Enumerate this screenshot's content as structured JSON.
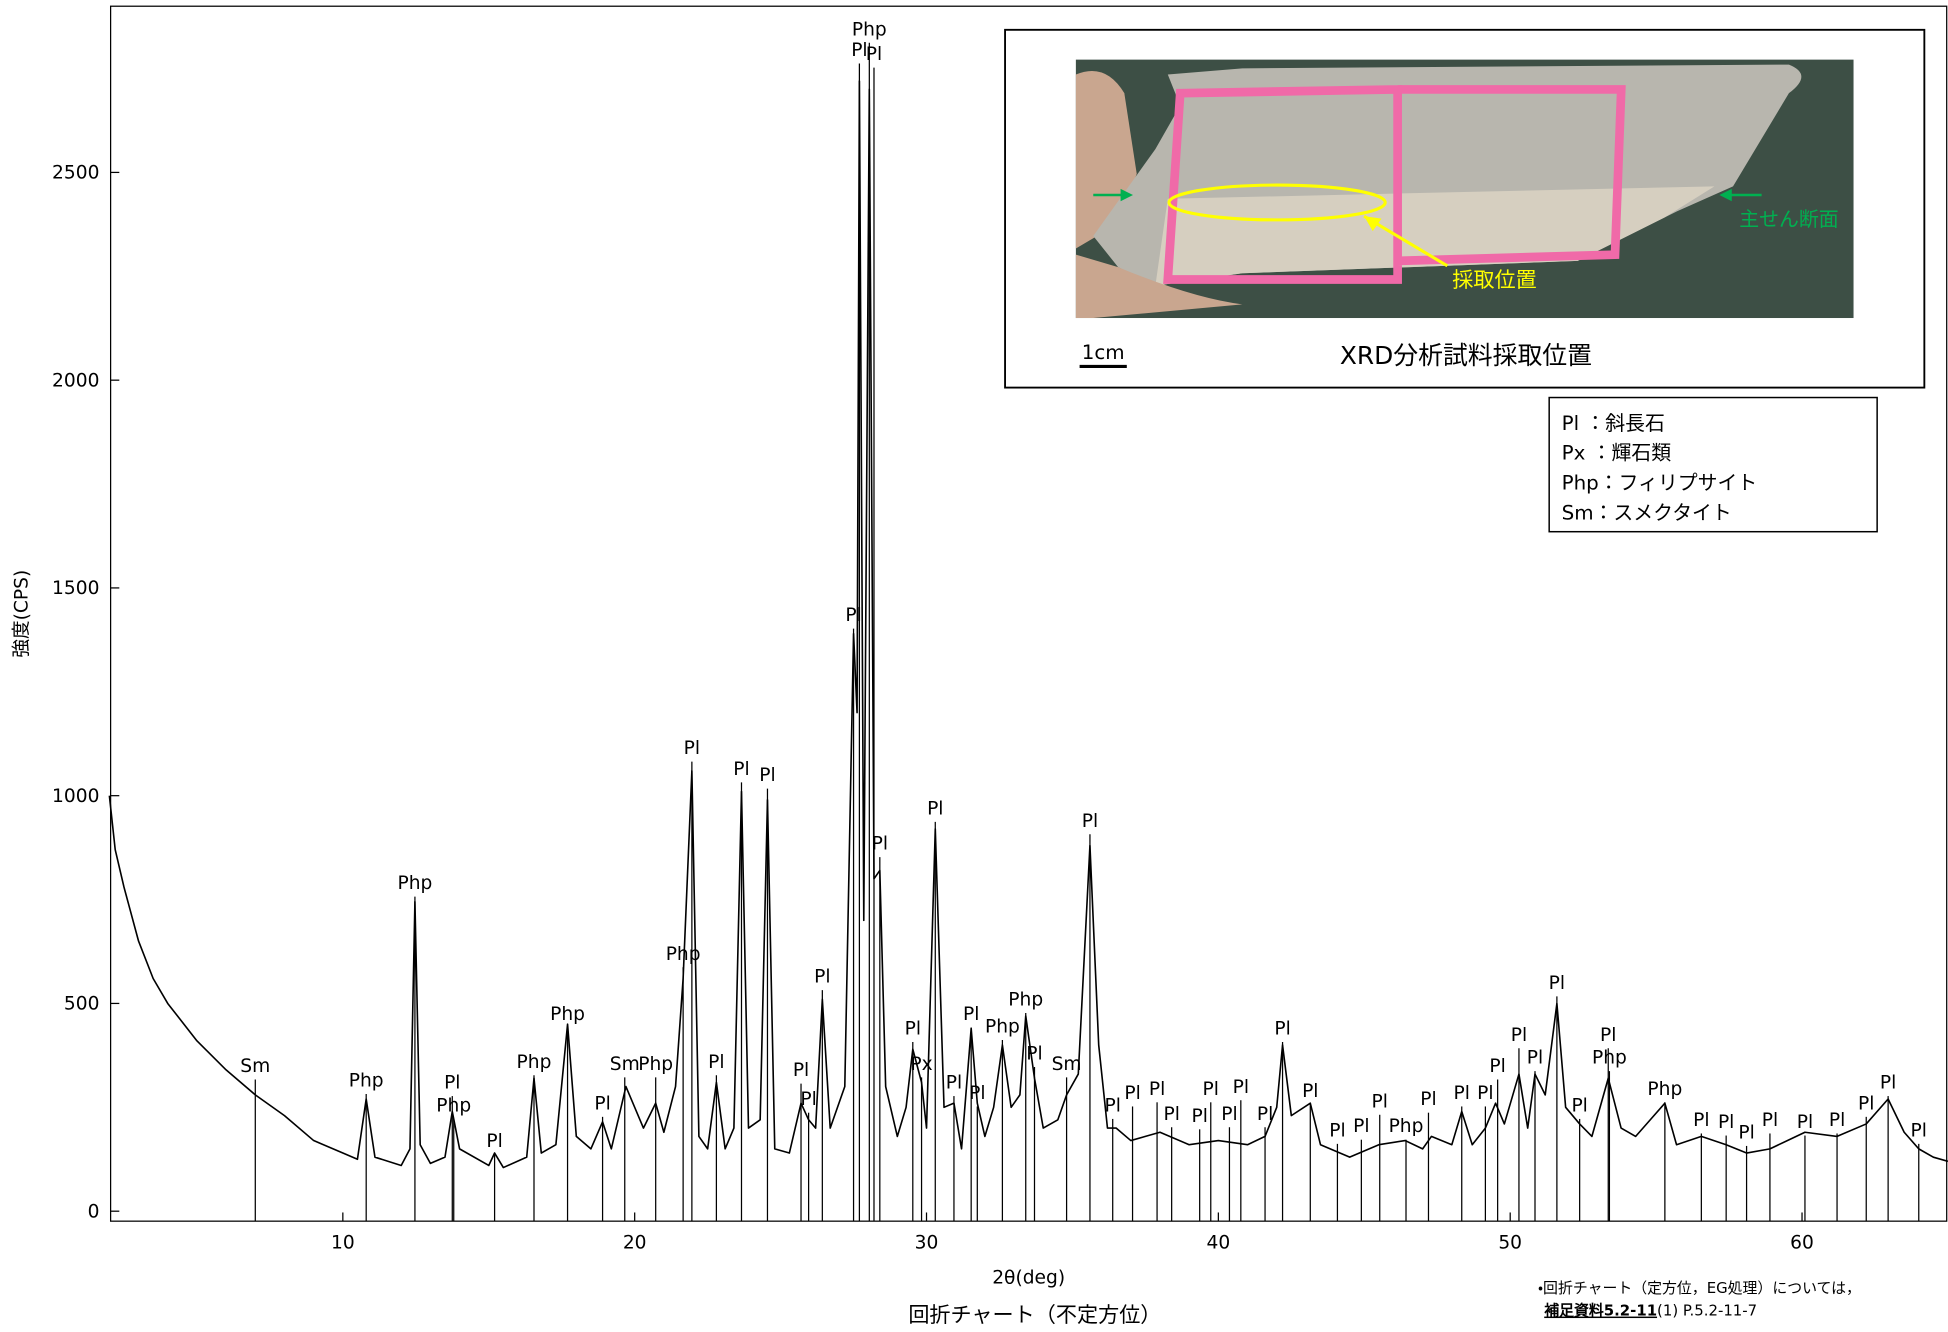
{
  "chart_data": {
    "type": "line",
    "xlabel": "2θ(deg)",
    "ylabel": "強度(CPS)",
    "caption": "回折チャート（不定方位）",
    "xlim": [
      2,
      65
    ],
    "ylim": [
      -24,
      2900
    ],
    "xticks": [
      10,
      20,
      30,
      40,
      50,
      60
    ],
    "yticks": [
      0,
      500,
      1000,
      1500,
      2000,
      2500
    ],
    "grid": false,
    "x": [
      2,
      2.2,
      2.5,
      3,
      3.5,
      4,
      5,
      6,
      7,
      8,
      9,
      10,
      10.5,
      10.8,
      11.1,
      12,
      12.3,
      12.47,
      12.65,
      13,
      13.5,
      13.75,
      14,
      15,
      15.2,
      15.5,
      16.3,
      16.55,
      16.8,
      17.3,
      17.7,
      18,
      18.5,
      18.9,
      19.2,
      19.7,
      20.3,
      20.72,
      21,
      21.4,
      21.66,
      21.96,
      22.2,
      22.5,
      22.8,
      23.1,
      23.4,
      23.66,
      23.9,
      24.3,
      24.55,
      24.8,
      25.3,
      25.7,
      25.96,
      26.2,
      26.43,
      26.7,
      27.2,
      27.5,
      27.62,
      27.7,
      27.85,
      28.04,
      28.2,
      28.4,
      28.6,
      29,
      29.3,
      29.53,
      29.83,
      30,
      30.3,
      30.6,
      30.94,
      31.2,
      31.53,
      31.74,
      32,
      32.3,
      32.6,
      32.9,
      33.2,
      33.4,
      33.7,
      34,
      34.5,
      34.8,
      35.2,
      35.6,
      35.9,
      36.2,
      36.5,
      37,
      38,
      39,
      40,
      41,
      41.6,
      42,
      42.2,
      42.5,
      43.15,
      43.5,
      44.5,
      45.5,
      46.4,
      47,
      47.3,
      48,
      48.34,
      48.7,
      49.15,
      49.5,
      49.8,
      50.3,
      50.6,
      50.85,
      51.2,
      51.6,
      51.9,
      52.38,
      52.8,
      53.36,
      53.8,
      54.3,
      55.3,
      55.7,
      56.55,
      57.4,
      58.1,
      58.9,
      60.1,
      61.2,
      62.2,
      62.95,
      63.5,
      64,
      64.5,
      65
    ],
    "series": [
      {
        "color": "#000000",
        "values": [
          1000,
          870,
          780,
          650,
          560,
          500,
          410,
          340,
          280,
          230,
          170,
          140,
          125,
          270,
          130,
          110,
          150,
          745,
          160,
          115,
          130,
          240,
          150,
          110,
          140,
          105,
          130,
          320,
          140,
          160,
          450,
          180,
          150,
          215,
          150,
          300,
          200,
          260,
          190,
          300,
          560,
          1060,
          180,
          150,
          310,
          150,
          200,
          1010,
          200,
          220,
          990,
          150,
          140,
          260,
          220,
          200,
          510,
          200,
          300,
          1390,
          1200,
          2720,
          700,
          2700,
          800,
          820,
          300,
          180,
          250,
          390,
          310,
          200,
          920,
          250,
          260,
          150,
          440,
          260,
          180,
          250,
          400,
          250,
          280,
          470,
          320,
          200,
          220,
          280,
          330,
          880,
          400,
          200,
          200,
          170,
          190,
          160,
          170,
          160,
          180,
          250,
          400,
          230,
          260,
          160,
          130,
          160,
          170,
          150,
          180,
          160,
          240,
          160,
          200,
          260,
          210,
          330,
          200,
          330,
          280,
          500,
          250,
          210,
          180,
          320,
          200,
          180,
          260,
          160,
          180,
          160,
          140,
          150,
          190,
          180,
          210,
          270,
          190,
          150,
          130,
          120
        ]
      }
    ],
    "annotations": [
      {
        "text": "Sm",
        "x": 7.0,
        "y": 335
      },
      {
        "text": "Php",
        "x": 10.8,
        "y": 300
      },
      {
        "text": "Php",
        "x": 12.47,
        "y": 775
      },
      {
        "text": "Pl",
        "x": 13.75,
        "y": 295
      },
      {
        "text": "Php",
        "x": 13.8,
        "y": 240
      },
      {
        "text": "Pl",
        "x": 15.2,
        "y": 155
      },
      {
        "text": "Php",
        "x": 16.55,
        "y": 345
      },
      {
        "text": "Php",
        "x": 17.7,
        "y": 460
      },
      {
        "text": "Pl",
        "x": 18.9,
        "y": 245
      },
      {
        "text": "Sm",
        "x": 19.66,
        "y": 340
      },
      {
        "text": "Php",
        "x": 20.72,
        "y": 340
      },
      {
        "text": "Php",
        "x": 21.66,
        "y": 605
      },
      {
        "text": "Pl",
        "x": 21.96,
        "y": 1100
      },
      {
        "text": "Pl",
        "x": 22.8,
        "y": 345
      },
      {
        "text": "Pl",
        "x": 23.66,
        "y": 1050
      },
      {
        "text": "Pl",
        "x": 24.55,
        "y": 1035
      },
      {
        "text": "Pl",
        "x": 25.7,
        "y": 325
      },
      {
        "text": "Pl",
        "x": 25.96,
        "y": 255
      },
      {
        "text": "Pl",
        "x": 26.43,
        "y": 550
      },
      {
        "text": "Pl",
        "x": 27.5,
        "y": 1420
      },
      {
        "text": "Pl",
        "x": 27.7,
        "y": 2780
      },
      {
        "text": "Php",
        "x": 28.04,
        "y": 2830
      },
      {
        "text": "Pl",
        "x": 28.2,
        "y": 2770
      },
      {
        "text": "Pl",
        "x": 28.4,
        "y": 870
      },
      {
        "text": "Pl",
        "x": 29.53,
        "y": 425
      },
      {
        "text": "Px",
        "x": 29.83,
        "y": 340
      },
      {
        "text": "Pl",
        "x": 30.3,
        "y": 955
      },
      {
        "text": "Pl",
        "x": 30.94,
        "y": 295
      },
      {
        "text": "Pl",
        "x": 31.53,
        "y": 460
      },
      {
        "text": "Pl",
        "x": 31.74,
        "y": 270
      },
      {
        "text": "Php",
        "x": 32.6,
        "y": 430
      },
      {
        "text": "Php",
        "x": 33.4,
        "y": 495
      },
      {
        "text": "Pl",
        "x": 33.7,
        "y": 365
      },
      {
        "text": "Sm",
        "x": 34.8,
        "y": 340
      },
      {
        "text": "Pl",
        "x": 35.6,
        "y": 925
      },
      {
        "text": "Pl",
        "x": 36.38,
        "y": 240
      },
      {
        "text": "Pl",
        "x": 37.06,
        "y": 270
      },
      {
        "text": "Pl",
        "x": 37.9,
        "y": 280
      },
      {
        "text": "Pl",
        "x": 38.4,
        "y": 220
      },
      {
        "text": "Pl",
        "x": 39.36,
        "y": 215
      },
      {
        "text": "Pl",
        "x": 39.74,
        "y": 280
      },
      {
        "text": "Pl",
        "x": 40.38,
        "y": 220
      },
      {
        "text": "Pl",
        "x": 40.77,
        "y": 285
      },
      {
        "text": "Pl",
        "x": 41.6,
        "y": 220
      },
      {
        "text": "Pl",
        "x": 42.2,
        "y": 425
      },
      {
        "text": "Pl",
        "x": 43.15,
        "y": 275
      },
      {
        "text": "Pl",
        "x": 44.08,
        "y": 180
      },
      {
        "text": "Pl",
        "x": 44.9,
        "y": 190
      },
      {
        "text": "Pl",
        "x": 45.53,
        "y": 250
      },
      {
        "text": "Php",
        "x": 46.43,
        "y": 190
      },
      {
        "text": "Pl",
        "x": 47.2,
        "y": 255
      },
      {
        "text": "Pl",
        "x": 48.34,
        "y": 270
      },
      {
        "text": "Pl",
        "x": 49.15,
        "y": 270
      },
      {
        "text": "Pl",
        "x": 49.57,
        "y": 335
      },
      {
        "text": "Pl",
        "x": 50.3,
        "y": 410
      },
      {
        "text": "Pl",
        "x": 50.85,
        "y": 355
      },
      {
        "text": "Pl",
        "x": 51.6,
        "y": 535
      },
      {
        "text": "Pl",
        "x": 52.38,
        "y": 240
      },
      {
        "text": "Pl",
        "x": 53.36,
        "y": 410
      },
      {
        "text": "Php",
        "x": 53.4,
        "y": 355
      },
      {
        "text": "Php",
        "x": 55.3,
        "y": 280
      },
      {
        "text": "Pl",
        "x": 56.55,
        "y": 205
      },
      {
        "text": "Pl",
        "x": 57.4,
        "y": 200
      },
      {
        "text": "Pl",
        "x": 58.1,
        "y": 175
      },
      {
        "text": "Pl",
        "x": 58.9,
        "y": 205
      },
      {
        "text": "Pl",
        "x": 60.1,
        "y": 200
      },
      {
        "text": "Pl",
        "x": 61.2,
        "y": 205
      },
      {
        "text": "Pl",
        "x": 62.2,
        "y": 245
      },
      {
        "text": "Pl",
        "x": 62.95,
        "y": 295
      },
      {
        "text": "Pl",
        "x": 64.0,
        "y": 180
      }
    ]
  },
  "legend_box": [
    "Pl ：斜長石",
    "Px ：輝石類",
    "Php：フィリプサイト",
    "Sm：スメクタイト"
  ],
  "inset": {
    "caption": "XRD分析試料採取位置",
    "scale": "1cm",
    "sample_label": "採取位置",
    "plane_label": "主せん断面"
  },
  "notes": {
    "line1": "・回折チャート（定方位，EG処理）については，",
    "ref": "補足資料5.2-11",
    "rest": "(1) P.5.2-11-7"
  }
}
